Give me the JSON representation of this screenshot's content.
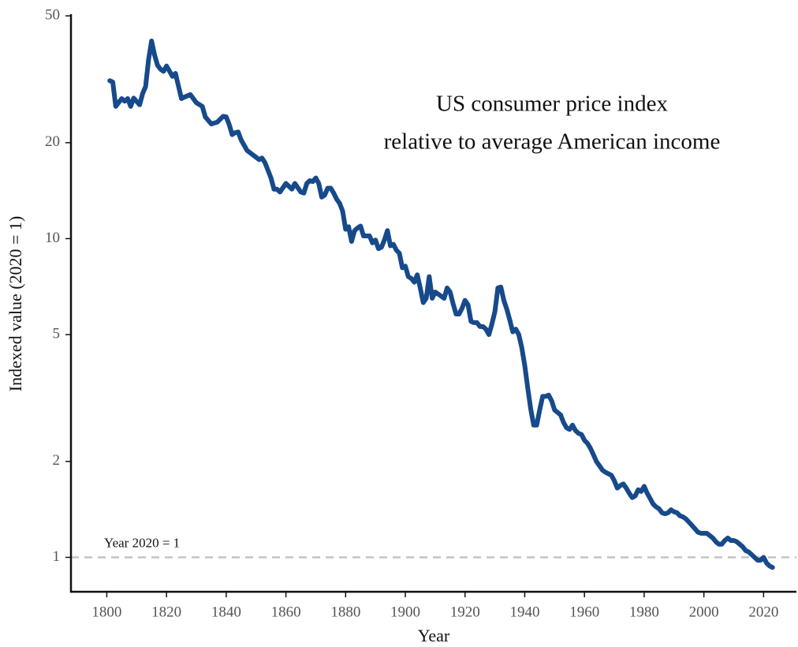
{
  "chart_data": {
    "type": "line",
    "title": [
      "US consumer price index",
      "relative to average American income"
    ],
    "xlabel": "Year",
    "ylabel": "Indexed value (2020 = 1)",
    "log_y": true,
    "color": "#174a8b",
    "reference_line": {
      "value": 1,
      "label": "Year 2020 = 1",
      "color": "#c4c4c4"
    },
    "xlim": [
      1788,
      2031
    ],
    "ylim": [
      0.78,
      50.6
    ],
    "xticks": [
      1800,
      1820,
      1840,
      1860,
      1880,
      1900,
      1920,
      1940,
      1960,
      1980,
      2000,
      2020
    ],
    "yticks": [
      1,
      2,
      5,
      10,
      20,
      50
    ],
    "x": [
      1801,
      1802,
      1803,
      1805,
      1806,
      1807,
      1808,
      1809,
      1811,
      1812,
      1813,
      1814,
      1815,
      1816,
      1817,
      1818,
      1819,
      1820,
      1822,
      1823,
      1825,
      1826,
      1828,
      1830,
      1832,
      1833,
      1835,
      1837,
      1839,
      1840,
      1841,
      1842,
      1843,
      1844,
      1845,
      1847,
      1849,
      1851,
      1852,
      1853,
      1855,
      1856,
      1857,
      1858,
      1860,
      1862,
      1863,
      1865,
      1866,
      1867,
      1868,
      1869,
      1870,
      1871,
      1872,
      1873,
      1874,
      1875,
      1876,
      1877,
      1878,
      1879,
      1880,
      1881,
      1882,
      1883,
      1884,
      1885,
      1886,
      1887,
      1888,
      1889,
      1890,
      1891,
      1892,
      1893,
      1894,
      1895,
      1896,
      1897,
      1898,
      1899,
      1900,
      1901,
      1902,
      1903,
      1904,
      1905,
      1906,
      1907,
      1908,
      1909,
      1910,
      1911,
      1912,
      1913,
      1914,
      1915,
      1916,
      1917,
      1918,
      1919,
      1920,
      1921,
      1922,
      1923,
      1924,
      1925,
      1926,
      1927,
      1928,
      1929,
      1930,
      1931,
      1932,
      1933,
      1934,
      1935,
      1936,
      1937,
      1938,
      1939,
      1940,
      1941,
      1942,
      1943,
      1944,
      1945,
      1946,
      1947,
      1948,
      1949,
      1950,
      1951,
      1952,
      1953,
      1954,
      1955,
      1956,
      1957,
      1958,
      1959,
      1960,
      1961,
      1962,
      1963,
      1964,
      1965,
      1966,
      1967,
      1968,
      1969,
      1970,
      1971,
      1972,
      1973,
      1974,
      1975,
      1976,
      1977,
      1978,
      1979,
      1980,
      1981,
      1982,
      1983,
      1984,
      1985,
      1986,
      1987,
      1988,
      1989,
      1990,
      1991,
      1992,
      1993,
      1994,
      1995,
      1996,
      1997,
      1998,
      1999,
      2000,
      2001,
      2002,
      2003,
      2004,
      2005,
      2006,
      2007,
      2008,
      2009,
      2010,
      2011,
      2012,
      2013,
      2014,
      2015,
      2016,
      2017,
      2018,
      2019,
      2020,
      2021,
      2022,
      2023
    ],
    "values": [
      31.3,
      31,
      26,
      27.5,
      27,
      27.5,
      26,
      27.6,
      26.3,
      28.5,
      30,
      36.5,
      41.7,
      37.7,
      35,
      34,
      33.5,
      34.8,
      32.3,
      33,
      27.5,
      27.8,
      28.3,
      26.7,
      26,
      24.1,
      22.9,
      23.2,
      24.2,
      24.1,
      22.8,
      21.2,
      21.5,
      21.6,
      20.4,
      18.9,
      18.3,
      17.7,
      17.9,
      17.3,
      15.5,
      14.3,
      14.3,
      14,
      14.9,
      14.3,
      14.9,
      14,
      13.9,
      14.9,
      15.2,
      15.1,
      15.5,
      14.9,
      13.5,
      13.7,
      14.4,
      14.4,
      13.9,
      13.3,
      12.9,
      12.2,
      10.7,
      10.9,
      9.8,
      10.6,
      10.8,
      10.95,
      10.2,
      10.2,
      10.2,
      9.7,
      9.9,
      9.3,
      9.4,
      9.9,
      10.6,
      9.5,
      9.6,
      9.2,
      9.0,
      8.1,
      8.2,
      7.6,
      7.5,
      7.3,
      7.7,
      7.0,
      6.3,
      6.5,
      7.6,
      6.5,
      6.8,
      6.7,
      6.6,
      6.5,
      7.0,
      6.8,
      6.25,
      5.8,
      5.8,
      6.05,
      6.4,
      6.2,
      5.5,
      5.45,
      5.45,
      5.3,
      5.3,
      5.2,
      5.0,
      5.4,
      5.9,
      7.0,
      7.05,
      6.4,
      6.0,
      5.55,
      5.1,
      5.2,
      5.0,
      4.55,
      4.0,
      3.4,
      2.92,
      2.6,
      2.6,
      2.9,
      3.2,
      3.2,
      3.23,
      3.1,
      2.9,
      2.85,
      2.8,
      2.65,
      2.55,
      2.52,
      2.6,
      2.5,
      2.45,
      2.43,
      2.33,
      2.28,
      2.2,
      2.1,
      2.0,
      1.94,
      1.88,
      1.85,
      1.83,
      1.81,
      1.74,
      1.65,
      1.68,
      1.7,
      1.65,
      1.59,
      1.54,
      1.56,
      1.63,
      1.61,
      1.67,
      1.59,
      1.53,
      1.47,
      1.44,
      1.42,
      1.38,
      1.37,
      1.38,
      1.41,
      1.39,
      1.38,
      1.35,
      1.34,
      1.32,
      1.29,
      1.26,
      1.23,
      1.2,
      1.19,
      1.19,
      1.19,
      1.17,
      1.15,
      1.12,
      1.1,
      1.1,
      1.13,
      1.15,
      1.13,
      1.13,
      1.12,
      1.1,
      1.08,
      1.05,
      1.04,
      1.02,
      1.0,
      0.98,
      0.98,
      1.0,
      0.96,
      0.94,
      0.93
    ]
  }
}
